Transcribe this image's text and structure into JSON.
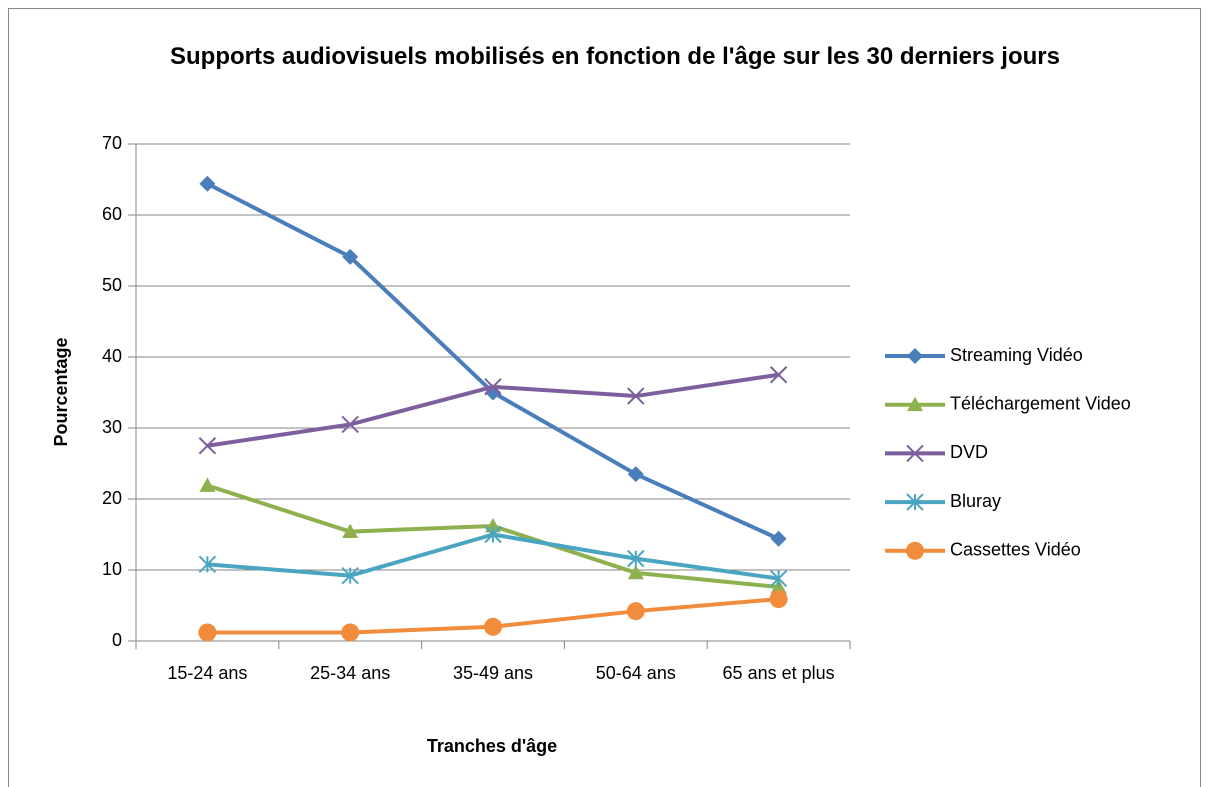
{
  "chart_data": {
    "type": "line",
    "title": "Supports audiovisuels mobilisés en fonction de l'âge sur les 30 derniers jours",
    "x_label": "Tranches d'âge",
    "y_label": "Pourcentage",
    "categories": [
      "15-24 ans",
      "25-34 ans",
      "35-49 ans",
      "50-64 ans",
      "65 ans et plus"
    ],
    "series": [
      {
        "name": "Streaming Vidéo",
        "color": "#4a7ebb",
        "marker": "diamond",
        "values": [
          64.4,
          54.1,
          35,
          23.5,
          14.4
        ]
      },
      {
        "name": "Téléchargement Video",
        "color": "#8fb04f",
        "marker": "triangle",
        "values": [
          21.9,
          15.4,
          16.2,
          9.6,
          7.6
        ]
      },
      {
        "name": "DVD",
        "color": "#7d5f9e",
        "marker": "x",
        "values": [
          27.5,
          30.5,
          35.8,
          34.5,
          37.5
        ]
      },
      {
        "name": "Bluray",
        "color": "#4aa6c0",
        "marker": "asterisk",
        "values": [
          10.8,
          9.2,
          15,
          11.6,
          8.8
        ]
      },
      {
        "name": "Cassettes Vidéo",
        "color": "#f08c3c",
        "marker": "circle",
        "values": [
          1.2,
          1.2,
          2.0,
          4.2,
          5.9
        ]
      }
    ],
    "ylim": [
      0,
      70
    ],
    "yticks": [
      0,
      10,
      20,
      30,
      40,
      50,
      60,
      70
    ],
    "grid": true,
    "legend": "right"
  }
}
